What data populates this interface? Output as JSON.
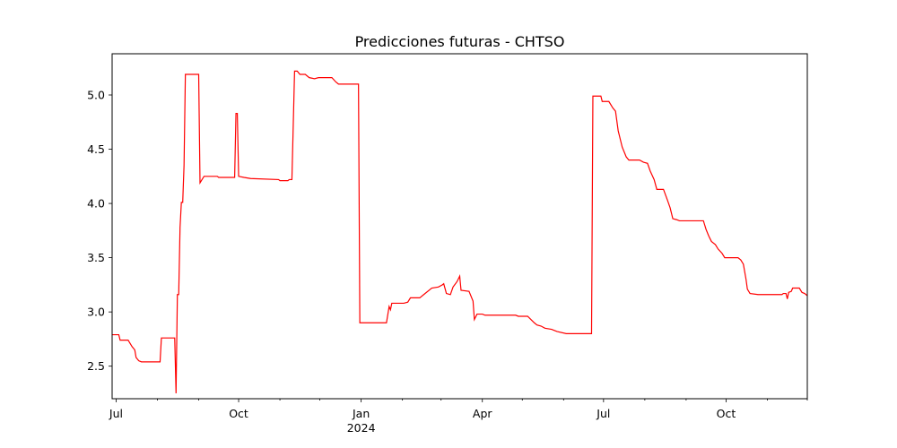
{
  "chart_data": {
    "type": "line",
    "title": "Predicciones futuras - CHTSO",
    "xlabel": "",
    "ylabel": "",
    "line_color": "#ff0000",
    "grid": false,
    "legend": "none",
    "x_range": [
      "2023-06-28",
      "2024-12-01"
    ],
    "ylim": [
      2.2,
      5.38
    ],
    "x_ticks": [
      {
        "date": "2023-07-01",
        "label": "Jul"
      },
      {
        "date": "2023-10-01",
        "label": "Oct"
      },
      {
        "date": "2024-01-01",
        "label": "Jan"
      },
      {
        "date": "2024-04-01",
        "label": "Apr"
      },
      {
        "date": "2024-07-01",
        "label": "Jul"
      },
      {
        "date": "2024-10-01",
        "label": "Oct"
      }
    ],
    "x_year_label": {
      "date": "2024-01-01",
      "label": "2024"
    },
    "minor_ticks": [
      "2023-08-01",
      "2023-09-01",
      "2023-11-01",
      "2023-12-01",
      "2024-02-01",
      "2024-03-01",
      "2024-05-01",
      "2024-06-01",
      "2024-08-01",
      "2024-09-01",
      "2024-11-01",
      "2024-12-01"
    ],
    "y_ticks": [
      {
        "value": 2.5,
        "label": "2.5"
      },
      {
        "value": 3.0,
        "label": "3.0"
      },
      {
        "value": 3.5,
        "label": "3.5"
      },
      {
        "value": 4.0,
        "label": "4.0"
      },
      {
        "value": 4.5,
        "label": "4.5"
      },
      {
        "value": 5.0,
        "label": "5.0"
      }
    ],
    "series": [
      {
        "points": [
          [
            "2023-06-28",
            2.79
          ],
          [
            "2023-07-03",
            2.79
          ],
          [
            "2023-07-04",
            2.74
          ],
          [
            "2023-07-10",
            2.74
          ],
          [
            "2023-07-13",
            2.68
          ],
          [
            "2023-07-15",
            2.65
          ],
          [
            "2023-07-16",
            2.58
          ],
          [
            "2023-07-18",
            2.55
          ],
          [
            "2023-07-20",
            2.54
          ],
          [
            "2023-08-03",
            2.54
          ],
          [
            "2023-08-04",
            2.76
          ],
          [
            "2023-08-14",
            2.76
          ],
          [
            "2023-08-15",
            2.25
          ],
          [
            "2023-08-16",
            3.16
          ],
          [
            "2023-08-17",
            3.16
          ],
          [
            "2023-08-18",
            3.78
          ],
          [
            "2023-08-19",
            4.01
          ],
          [
            "2023-08-20",
            4.01
          ],
          [
            "2023-08-21",
            4.35
          ],
          [
            "2023-08-22",
            5.19
          ],
          [
            "2023-09-01",
            5.19
          ],
          [
            "2023-09-02",
            4.19
          ],
          [
            "2023-09-05",
            4.25
          ],
          [
            "2023-09-15",
            4.25
          ],
          [
            "2023-09-16",
            4.24
          ],
          [
            "2023-09-28",
            4.24
          ],
          [
            "2023-09-29",
            4.83
          ],
          [
            "2023-09-30",
            4.83
          ],
          [
            "2023-10-01",
            4.25
          ],
          [
            "2023-10-05",
            4.24
          ],
          [
            "2023-10-10",
            4.23
          ],
          [
            "2023-10-31",
            4.22
          ],
          [
            "2023-11-01",
            4.21
          ],
          [
            "2023-11-07",
            4.21
          ],
          [
            "2023-11-08",
            4.22
          ],
          [
            "2023-11-10",
            4.22
          ],
          [
            "2023-11-12",
            5.22
          ],
          [
            "2023-11-14",
            5.22
          ],
          [
            "2023-11-16",
            5.19
          ],
          [
            "2023-11-20",
            5.19
          ],
          [
            "2023-11-23",
            5.16
          ],
          [
            "2023-11-27",
            5.15
          ],
          [
            "2023-11-30",
            5.16
          ],
          [
            "2023-12-10",
            5.16
          ],
          [
            "2023-12-13",
            5.12
          ],
          [
            "2023-12-15",
            5.1
          ],
          [
            "2023-12-30",
            5.1
          ],
          [
            "2023-12-31",
            2.9
          ],
          [
            "2024-01-20",
            2.9
          ],
          [
            "2024-01-22",
            3.05
          ],
          [
            "2024-01-23",
            3.02
          ],
          [
            "2024-01-24",
            3.08
          ],
          [
            "2024-02-02",
            3.08
          ],
          [
            "2024-02-05",
            3.09
          ],
          [
            "2024-02-07",
            3.13
          ],
          [
            "2024-02-14",
            3.13
          ],
          [
            "2024-02-17",
            3.16
          ],
          [
            "2024-02-23",
            3.22
          ],
          [
            "2024-02-28",
            3.23
          ],
          [
            "2024-03-02",
            3.25
          ],
          [
            "2024-03-03",
            3.26
          ],
          [
            "2024-03-05",
            3.17
          ],
          [
            "2024-03-08",
            3.16
          ],
          [
            "2024-03-10",
            3.23
          ],
          [
            "2024-03-13",
            3.28
          ],
          [
            "2024-03-15",
            3.33
          ],
          [
            "2024-03-16",
            3.2
          ],
          [
            "2024-03-22",
            3.19
          ],
          [
            "2024-03-25",
            3.1
          ],
          [
            "2024-03-26",
            2.93
          ],
          [
            "2024-03-28",
            2.98
          ],
          [
            "2024-04-01",
            2.98
          ],
          [
            "2024-04-03",
            2.97
          ],
          [
            "2024-04-26",
            2.97
          ],
          [
            "2024-04-28",
            2.96
          ],
          [
            "2024-05-05",
            2.96
          ],
          [
            "2024-05-10",
            2.9
          ],
          [
            "2024-05-12",
            2.88
          ],
          [
            "2024-05-15",
            2.87
          ],
          [
            "2024-05-18",
            2.85
          ],
          [
            "2024-05-23",
            2.84
          ],
          [
            "2024-05-27",
            2.82
          ],
          [
            "2024-06-03",
            2.8
          ],
          [
            "2024-06-22",
            2.8
          ],
          [
            "2024-06-23",
            4.99
          ],
          [
            "2024-06-29",
            4.99
          ],
          [
            "2024-06-30",
            4.94
          ],
          [
            "2024-07-05",
            4.94
          ],
          [
            "2024-07-08",
            4.88
          ],
          [
            "2024-07-10",
            4.85
          ],
          [
            "2024-07-12",
            4.67
          ],
          [
            "2024-07-15",
            4.52
          ],
          [
            "2024-07-18",
            4.43
          ],
          [
            "2024-07-20",
            4.4
          ],
          [
            "2024-07-28",
            4.4
          ],
          [
            "2024-07-31",
            4.38
          ],
          [
            "2024-08-03",
            4.37
          ],
          [
            "2024-08-05",
            4.3
          ],
          [
            "2024-08-08",
            4.22
          ],
          [
            "2024-08-10",
            4.13
          ],
          [
            "2024-08-15",
            4.13
          ],
          [
            "2024-08-18",
            4.03
          ],
          [
            "2024-08-20",
            3.96
          ],
          [
            "2024-08-22",
            3.86
          ],
          [
            "2024-08-25",
            3.85
          ],
          [
            "2024-08-27",
            3.84
          ],
          [
            "2024-09-14",
            3.84
          ],
          [
            "2024-09-16",
            3.76
          ],
          [
            "2024-09-18",
            3.7
          ],
          [
            "2024-09-20",
            3.65
          ],
          [
            "2024-09-23",
            3.62
          ],
          [
            "2024-09-25",
            3.58
          ],
          [
            "2024-09-28",
            3.54
          ],
          [
            "2024-09-30",
            3.5
          ],
          [
            "2024-10-05",
            3.5
          ],
          [
            "2024-10-10",
            3.5
          ],
          [
            "2024-10-12",
            3.48
          ],
          [
            "2024-10-14",
            3.44
          ],
          [
            "2024-10-16",
            3.3
          ],
          [
            "2024-10-17",
            3.21
          ],
          [
            "2024-10-19",
            3.17
          ],
          [
            "2024-10-25",
            3.16
          ],
          [
            "2024-11-12",
            3.16
          ],
          [
            "2024-11-13",
            3.17
          ],
          [
            "2024-11-15",
            3.17
          ],
          [
            "2024-11-16",
            3.12
          ],
          [
            "2024-11-17",
            3.18
          ],
          [
            "2024-11-19",
            3.19
          ],
          [
            "2024-11-20",
            3.22
          ],
          [
            "2024-11-25",
            3.22
          ],
          [
            "2024-11-27",
            3.18
          ],
          [
            "2024-11-29",
            3.17
          ],
          [
            "2024-12-01",
            3.15
          ]
        ]
      }
    ]
  }
}
